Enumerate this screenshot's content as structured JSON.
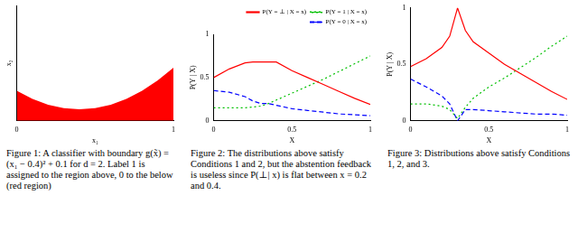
{
  "chart_data": [
    {
      "type": "area",
      "caption": "Figure 1: A classifier with boundary g(x̃) = (x₁ − 0.4)² + 0.1 for d = 2. Label 1 is assigned to the region above, 0 to the below (red region)",
      "x_label": "x₁",
      "y_label": "x₂",
      "x": [
        0,
        0.1,
        0.2,
        0.3,
        0.4,
        0.5,
        0.6,
        0.7,
        0.8,
        0.9,
        1
      ],
      "series": [
        {
          "color": "#ff0000",
          "values": [
            0.26,
            0.19,
            0.14,
            0.11,
            0.1,
            0.11,
            0.14,
            0.19,
            0.26,
            0.35,
            0.46
          ]
        }
      ],
      "xlim": [
        0,
        1
      ],
      "xticks": [
        0,
        1
      ],
      "ylim": [
        0,
        1
      ],
      "tick_labels": "x",
      "grid": false
    },
    {
      "type": "line",
      "caption": "Figure 2: The distributions above satisfy Conditions 1 and 2, but the abstention feedback is useless since P(⊥| x) is flat between x = 0.2 and 0.4.",
      "x_label": "X",
      "y_label": "P(Y | X)",
      "x": [
        0,
        0.1,
        0.2,
        0.25,
        0.3,
        0.35,
        0.4,
        0.5,
        0.6,
        0.7,
        0.8,
        0.9,
        1
      ],
      "series": [
        {
          "name": "P(Y = ⊥ | X = x)",
          "color": "#ff0000",
          "line_style": "solid",
          "values": [
            0.5,
            0.6,
            0.67,
            0.68,
            0.68,
            0.68,
            0.68,
            0.58,
            0.5,
            0.42,
            0.34,
            0.26,
            0.19
          ]
        },
        {
          "name": "P(Y = 1 | X = x)",
          "color": "#00c000",
          "line_style": "dotted",
          "values": [
            0.15,
            0.15,
            0.15,
            0.16,
            0.17,
            0.2,
            0.24,
            0.32,
            0.4,
            0.48,
            0.57,
            0.66,
            0.75
          ]
        },
        {
          "name": "P(Y = 0 | X = x)",
          "color": "#0000ff",
          "line_style": "dashed",
          "values": [
            0.35,
            0.33,
            0.28,
            0.23,
            0.2,
            0.2,
            0.18,
            0.14,
            0.12,
            0.1,
            0.08,
            0.07,
            0.06
          ]
        }
      ],
      "xlim": [
        0,
        1
      ],
      "xticks": [
        0,
        0.5,
        1
      ],
      "ylim": [
        0,
        1
      ],
      "yticks": [
        0,
        0.5,
        1
      ],
      "legend": "top-right",
      "grid": false
    },
    {
      "type": "line",
      "caption": "Figure 3: Distributions above satisfy Conditions 1, 2, and 3.",
      "x_label": "X",
      "y_label": "P(Y | X)",
      "x": [
        0,
        0.1,
        0.2,
        0.25,
        0.3,
        0.35,
        0.4,
        0.5,
        0.6,
        0.7,
        0.8,
        0.9,
        1
      ],
      "series": [
        {
          "color": "#ff0000",
          "line_style": "solid",
          "values": [
            0.48,
            0.55,
            0.65,
            0.75,
            1.0,
            0.8,
            0.7,
            0.6,
            0.5,
            0.42,
            0.34,
            0.26,
            0.19
          ]
        },
        {
          "color": "#00c000",
          "line_style": "dotted",
          "values": [
            0.15,
            0.15,
            0.13,
            0.1,
            0.02,
            0.12,
            0.2,
            0.3,
            0.38,
            0.47,
            0.56,
            0.66,
            0.75
          ]
        },
        {
          "color": "#0000ff",
          "line_style": "dashed",
          "values": [
            0.37,
            0.3,
            0.22,
            0.15,
            0.0,
            0.1,
            0.1,
            0.09,
            0.08,
            0.07,
            0.06,
            0.06,
            0.05
          ]
        }
      ],
      "xlim": [
        0,
        1
      ],
      "xticks": [
        0,
        0.5,
        1
      ],
      "ylim": [
        0,
        1
      ],
      "yticks": [
        0,
        0.5,
        1
      ],
      "grid": false
    }
  ]
}
